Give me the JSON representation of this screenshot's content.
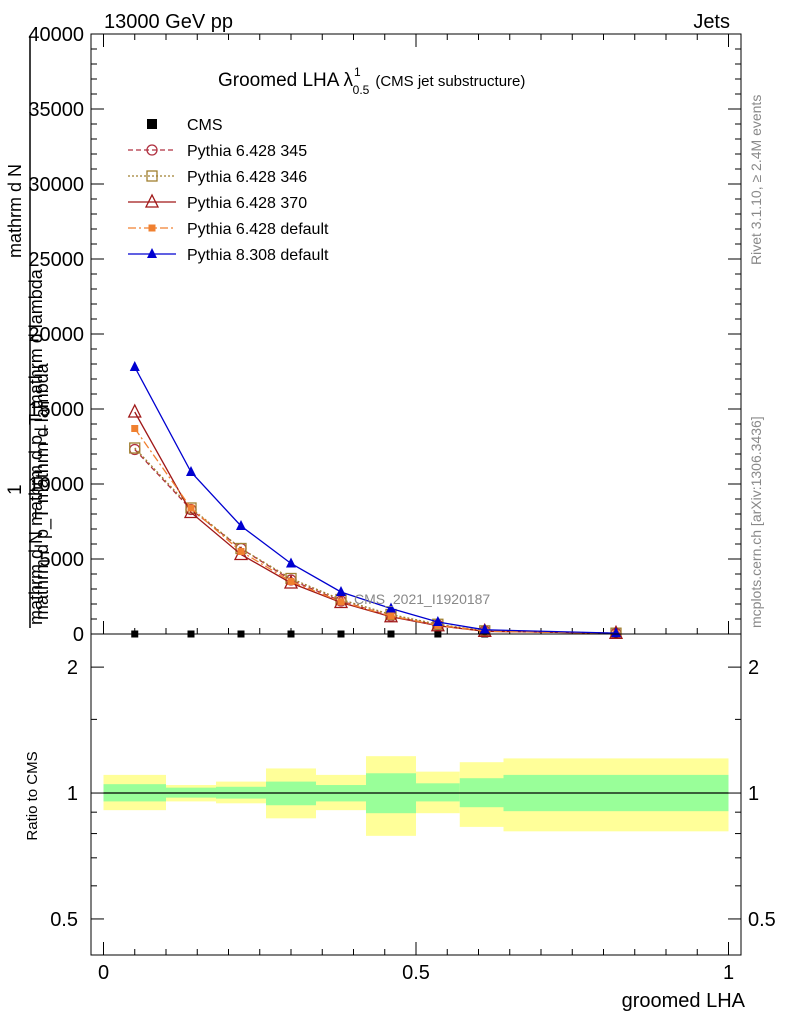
{
  "header": {
    "left": "13000 GeV pp",
    "right": "Jets"
  },
  "side_labels": {
    "rivet": "Rivet 3.1.10, ≥ 2.4M events",
    "mcplots": "mcplots.cern.ch [arXiv:1306.3436]"
  },
  "chart_data": [
    {
      "type": "line",
      "title_main": "Groomed LHA",
      "title_lambda": "λ",
      "title_sup": "1",
      "title_sub": "0.5",
      "title_extra": "(CMS jet substructure)",
      "ylabel_main": "mathrm d N mathrm d p_T mathrm d lambda",
      "ylabel_prefix": "1",
      "ylabel_frac_num": "mathrm d N",
      "ylabel_frac_den": "mathrm d p_T mathrm d lambda",
      "annotation": "CMS_2021_I1920187",
      "xlim": [
        -0.02,
        1.02
      ],
      "ylim": [
        0,
        40000
      ],
      "y_ticks": [
        0,
        5000,
        10000,
        15000,
        20000,
        25000,
        30000,
        35000,
        40000
      ],
      "y_tick_labels": [
        "0",
        "5000",
        "10000",
        "15000",
        "20000",
        "25000",
        "30000",
        "35000",
        "40000"
      ],
      "x": [
        0.05,
        0.14,
        0.22,
        0.3,
        0.38,
        0.46,
        0.535,
        0.61,
        0.82
      ],
      "series": [
        {
          "name": "CMS",
          "color": "#000000",
          "values": [
            0,
            0,
            0,
            0,
            0,
            0,
            0,
            0,
            0
          ]
        },
        {
          "name": "Pythia 6.428 345",
          "color": "#b03040",
          "values": [
            12300,
            8300,
            5700,
            3600,
            2200,
            1200,
            600,
            200,
            50
          ]
        },
        {
          "name": "Pythia 6.428 346",
          "color": "#a08030",
          "values": [
            12400,
            8400,
            5700,
            3700,
            2300,
            1300,
            650,
            210,
            55
          ]
        },
        {
          "name": "Pythia 6.428 370",
          "color": "#a01818",
          "values": [
            14800,
            8100,
            5300,
            3400,
            2100,
            1150,
            550,
            180,
            45
          ]
        },
        {
          "name": "Pythia 6.428 default",
          "color": "#f08030",
          "values": [
            13700,
            8400,
            5500,
            3500,
            2150,
            1200,
            580,
            190,
            48
          ]
        },
        {
          "name": "Pythia 8.308 default",
          "color": "#0000d0",
          "values": [
            17800,
            10800,
            7200,
            4700,
            2800,
            1700,
            800,
            280,
            60
          ]
        }
      ]
    },
    {
      "type": "area",
      "ylabel": "Ratio to CMS",
      "xlabel": "groomed LHA",
      "xlim": [
        -0.02,
        1.02
      ],
      "ylim": [
        0.41,
        2.4
      ],
      "log_y": true,
      "x_ticks": [
        0,
        0.5,
        1
      ],
      "x_tick_labels": [
        "0",
        "0.5",
        "1"
      ],
      "y_ticks": [
        0.5,
        1,
        2
      ],
      "y_tick_labels": [
        "0.5",
        "1",
        "2"
      ],
      "bin_edges": [
        0,
        0.1,
        0.18,
        0.26,
        0.34,
        0.42,
        0.5,
        0.57,
        0.64,
        1.0
      ],
      "inner_band": {
        "color": "#99ff99",
        "lo": [
          0.955,
          0.975,
          0.97,
          0.935,
          0.955,
          0.895,
          0.955,
          0.925,
          0.905
        ],
        "hi": [
          1.05,
          1.03,
          1.035,
          1.065,
          1.045,
          1.115,
          1.055,
          1.085,
          1.105
        ]
      },
      "outer_band": {
        "color": "#ffff99",
        "lo": [
          0.91,
          0.955,
          0.945,
          0.87,
          0.91,
          0.79,
          0.895,
          0.83,
          0.81
        ],
        "hi": [
          1.105,
          1.045,
          1.065,
          1.145,
          1.105,
          1.225,
          1.125,
          1.185,
          1.21
        ]
      },
      "reference_line": 1
    }
  ]
}
